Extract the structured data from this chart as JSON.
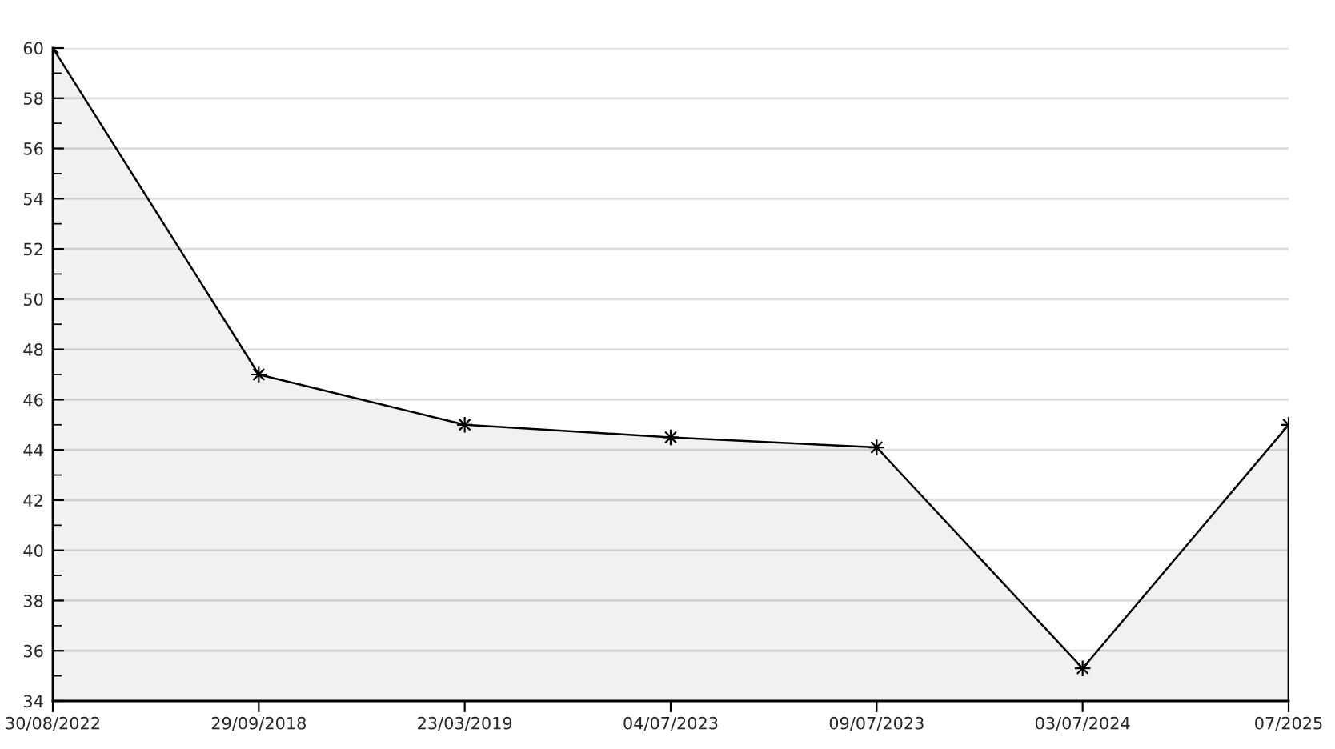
{
  "chart_data": {
    "type": "area",
    "categories": [
      "30/08/2022",
      "29/09/2018",
      "23/03/2019",
      "04/07/2023",
      "09/07/2023",
      "03/07/2024",
      "07/2025"
    ],
    "series": [
      {
        "color": "#000000",
        "values": [
          60,
          47,
          45,
          44.5,
          44.1,
          35.3,
          45
        ]
      }
    ],
    "ylim": [
      34,
      60
    ],
    "yticks": [
      34,
      36,
      38,
      40,
      42,
      44,
      46,
      48,
      50,
      52,
      54,
      56,
      58,
      60
    ],
    "grid": "y",
    "marker": "star",
    "line_style": "solid",
    "legend": false
  }
}
